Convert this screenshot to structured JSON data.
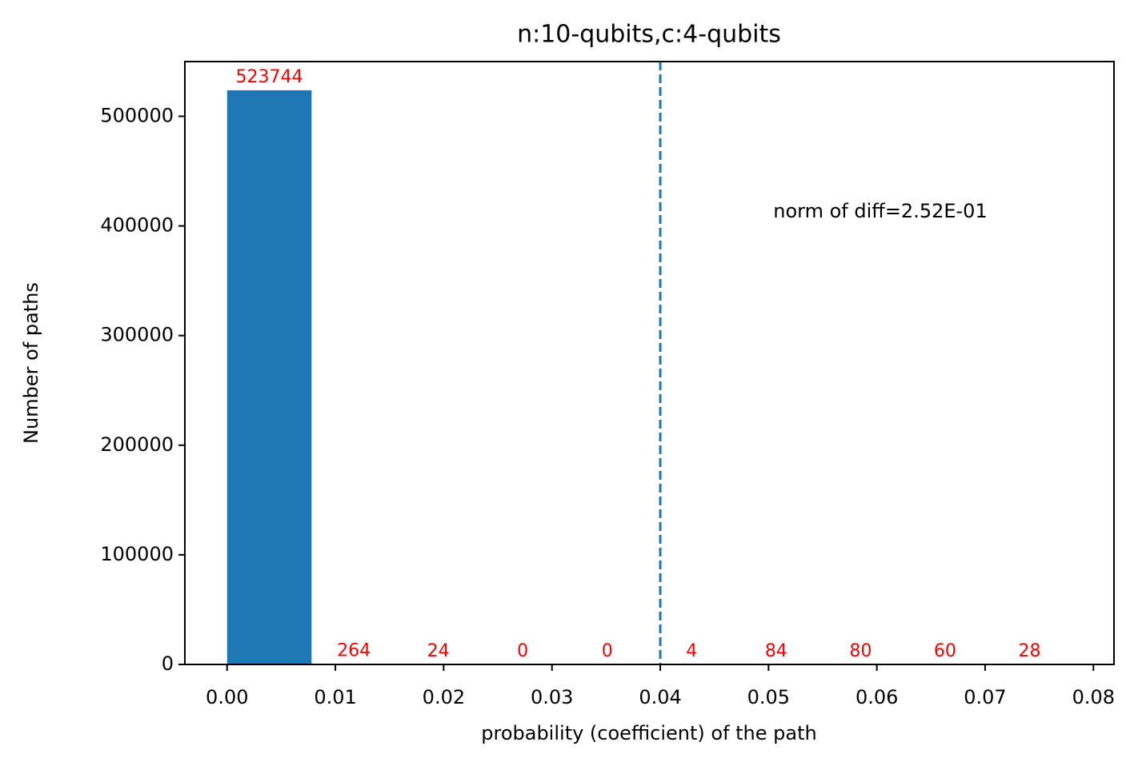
{
  "chart_data": {
    "type": "histogram",
    "title": "n:10-qubits,c:4-qubits",
    "x_label": "probability (coefficient) of the path",
    "y_label": "Number of paths",
    "bins": [
      0,
      0.0078,
      0.0156,
      0.0234,
      0.0312,
      0.039,
      0.0468,
      0.0546,
      0.0624,
      0.0702,
      0.078
    ],
    "values": [
      523744,
      264,
      24,
      0,
      0,
      4,
      84,
      80,
      60,
      28
    ],
    "color": "#1f77b4",
    "value_label_color": "#ff0000",
    "xlim": [
      -0.0039,
      0.0819
    ],
    "ylim": [
      0,
      549931
    ],
    "xticks": [
      {
        "value": 0,
        "label": "0.00"
      },
      {
        "value": 0.01,
        "label": "0.01"
      },
      {
        "value": 0.02,
        "label": "0.02"
      },
      {
        "value": 0.03,
        "label": "0.03"
      },
      {
        "value": 0.04,
        "label": "0.04"
      },
      {
        "value": 0.05,
        "label": "0.05"
      },
      {
        "value": 0.06,
        "label": "0.06"
      },
      {
        "value": 0.07,
        "label": "0.07"
      },
      {
        "value": 0.08,
        "label": "0.08"
      }
    ],
    "yticks": [
      0,
      100000,
      200000,
      300000,
      400000,
      500000
    ],
    "vline": {
      "x": 0.04,
      "color": "#1f77b4",
      "style": "dashed"
    },
    "annotation": "norm of diff=2.52E-01",
    "grid": false
  }
}
